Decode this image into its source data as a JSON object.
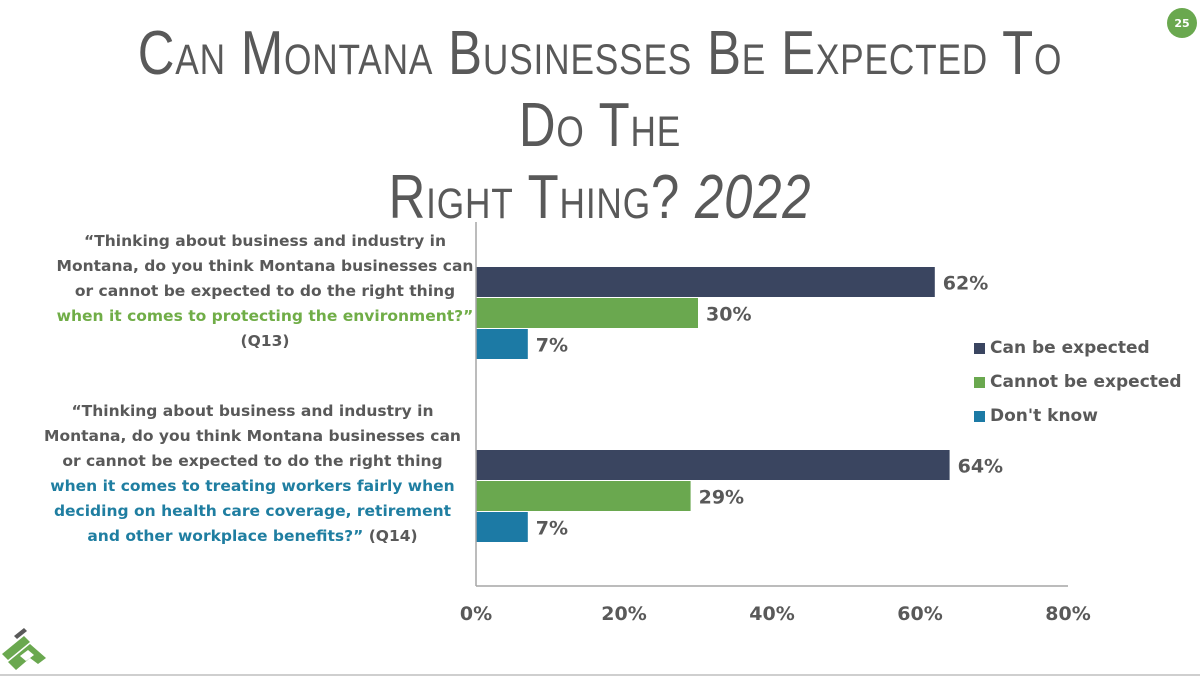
{
  "title": {
    "line1": "Can Montana Businesses Be Expected To Do The",
    "line2": "Right Thing?",
    "year": "2022"
  },
  "page_number": "25",
  "questions": [
    {
      "pre": "“Thinking about business and industry in Montana, do you think Montana businesses can or cannot be expected to do the right thing ",
      "highlight": "when it comes to protecting the environment?”",
      "post": " (Q13)"
    },
    {
      "pre": "“Thinking about business and industry in Montana, do you think Montana businesses can or cannot be expected to do the right thing ",
      "highlight": "when it comes to treating workers fairly when deciding on health care coverage, retirement and other workplace benefits?”",
      "post": " (Q14)"
    }
  ],
  "colors": {
    "can": "#3a4560",
    "cannot": "#6aa84f",
    "dontknow": "#1c7aa5",
    "highlight_green": "#70ad47",
    "highlight_blue": "#1f7ea1"
  },
  "chart_data": {
    "type": "bar",
    "orientation": "horizontal",
    "categories": [
      "Q13 protecting the environment",
      "Q14 treating workers fairly"
    ],
    "series": [
      {
        "name": "Can be expected",
        "values": [
          62,
          64
        ]
      },
      {
        "name": "Cannot be expected",
        "values": [
          30,
          29
        ]
      },
      {
        "name": "Don't know",
        "values": [
          7,
          7
        ]
      }
    ],
    "value_labels": [
      [
        "62%",
        "30%",
        "7%"
      ],
      [
        "64%",
        "29%",
        "7%"
      ]
    ],
    "xlim": [
      0,
      80
    ],
    "xticks": [
      0,
      20,
      40,
      60,
      80
    ],
    "xtick_labels": [
      "0%",
      "20%",
      "40%",
      "60%",
      "80%"
    ],
    "legend": "right",
    "grid": false
  }
}
